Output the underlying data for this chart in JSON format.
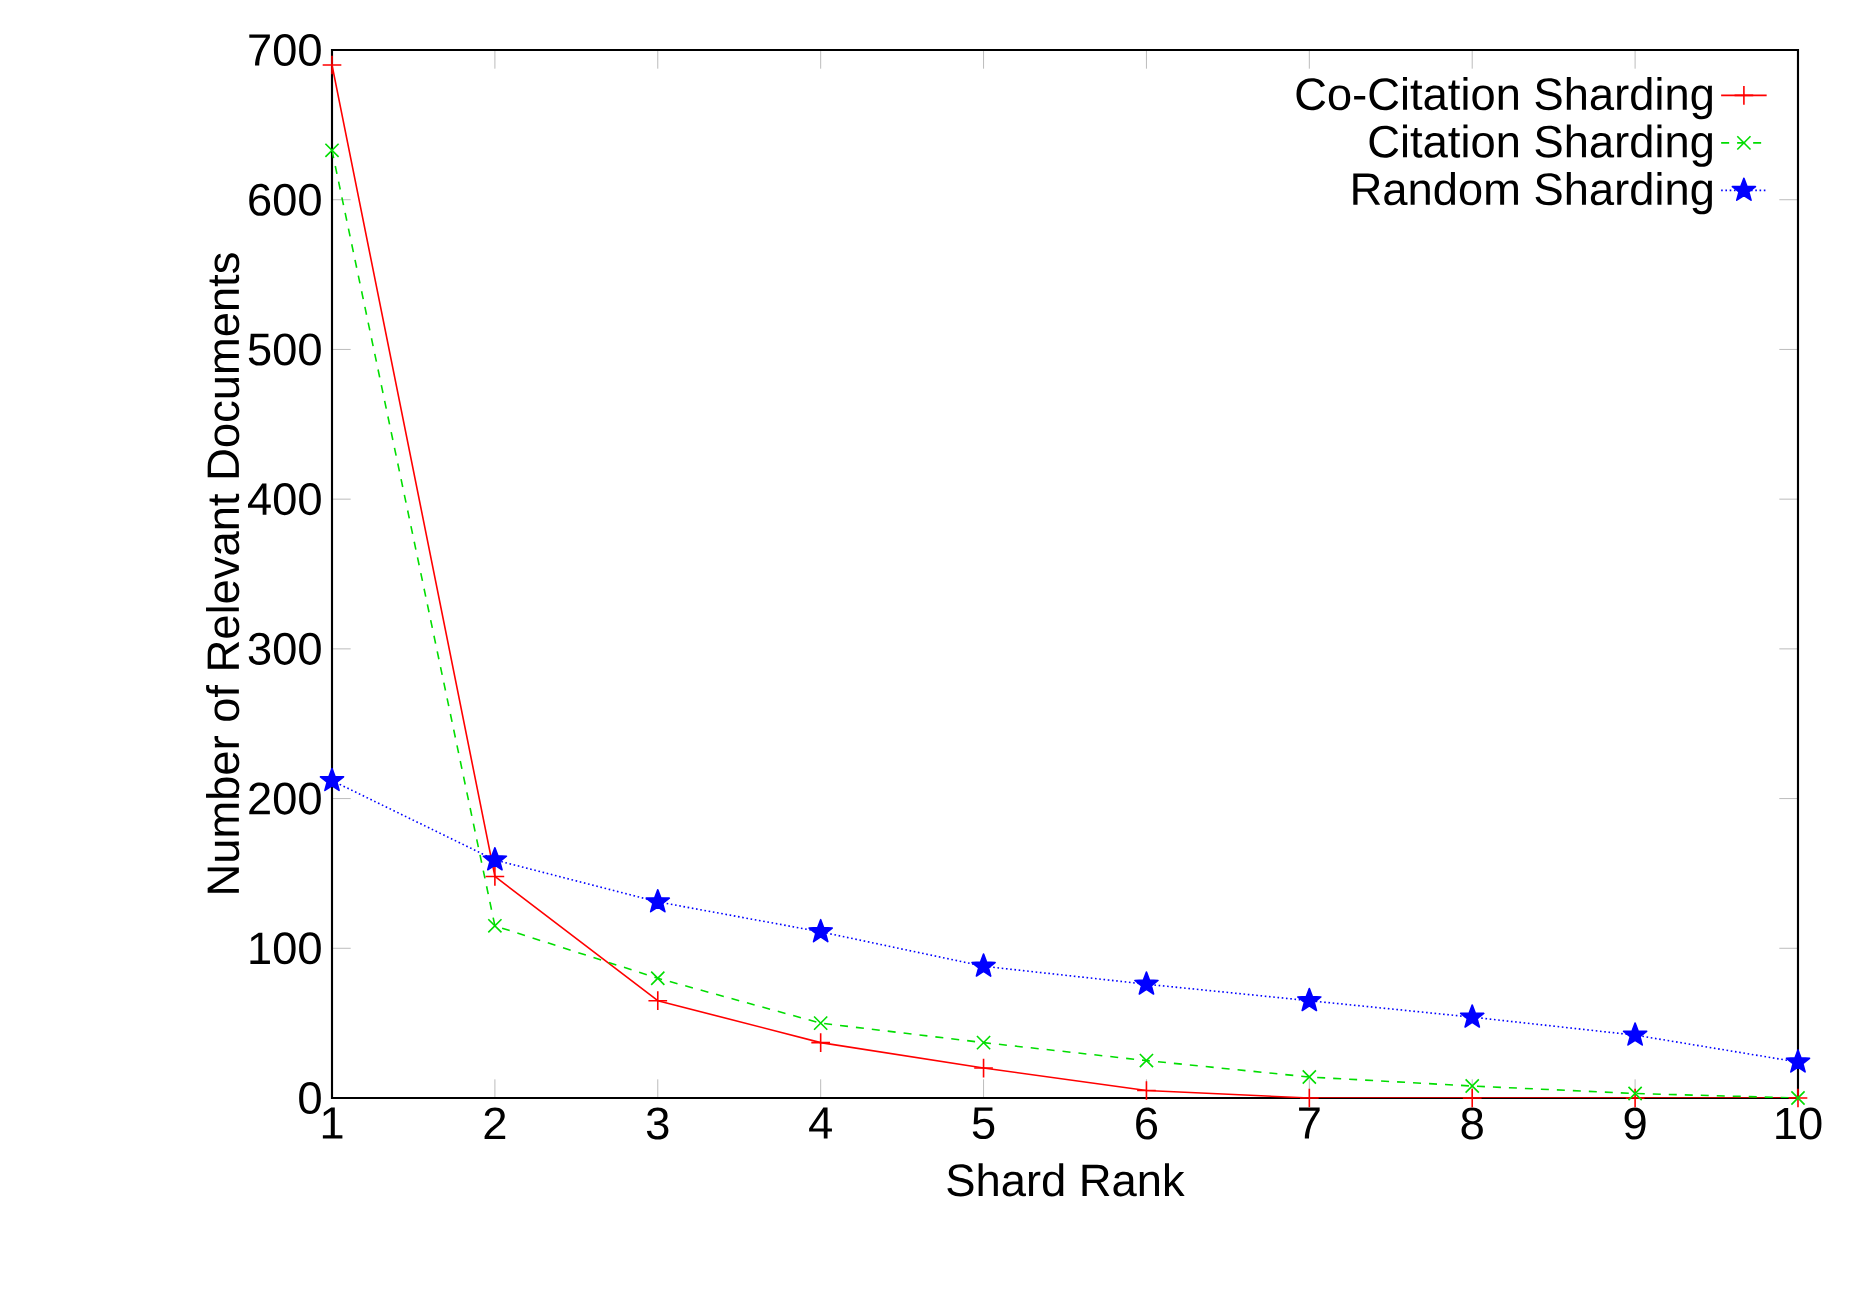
{
  "chart_data": {
    "type": "line",
    "xlabel": "Shard Rank",
    "ylabel": "Number of Relevant Documents",
    "x": [
      1,
      2,
      3,
      4,
      5,
      6,
      7,
      8,
      9,
      10
    ],
    "series": [
      {
        "name": "Co-Citation Sharding",
        "color": "#ff0000",
        "marker": "plus",
        "line_style": "solid",
        "values": [
          690,
          148,
          65,
          37,
          20,
          5,
          0,
          0,
          0,
          0
        ]
      },
      {
        "name": "Citation Sharding",
        "color": "#00dd00",
        "marker": "cross",
        "line_style": "dashed",
        "values": [
          633,
          115,
          80,
          50,
          37,
          25,
          14,
          8,
          3,
          0
        ]
      },
      {
        "name": "Random Sharding",
        "color": "#0000ff",
        "marker": "star",
        "line_style": "dotted",
        "values": [
          212,
          159,
          131,
          111,
          88,
          76,
          65,
          54,
          42,
          24
        ]
      }
    ],
    "xlim": [
      1,
      10
    ],
    "xticks": [
      1,
      2,
      3,
      4,
      5,
      6,
      7,
      8,
      9,
      10
    ],
    "ylim": [
      0,
      700
    ],
    "yticks": [
      0,
      100,
      200,
      300,
      400,
      500,
      600,
      700
    ],
    "grid": false,
    "legend": "top right"
  }
}
